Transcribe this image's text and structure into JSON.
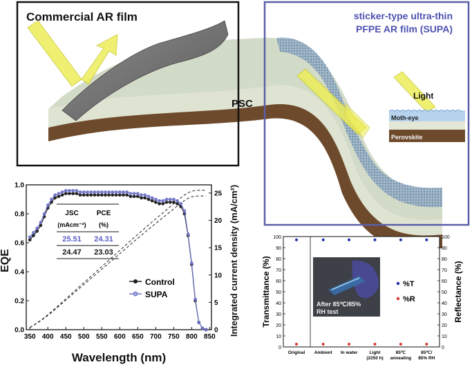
{
  "schematic": {
    "commercial_label": "Commercial AR film",
    "supa_label_line1": "sticker-type ultra-thin",
    "supa_label_line2": "PFPE AR film (SUPA)",
    "psc_label": "PSC",
    "inset": {
      "light": "Light",
      "moth_eye": "Moth-eye",
      "perovskite": "Perovskite"
    }
  },
  "chart_data": [
    {
      "type": "line",
      "xlabel": "Wavelength (nm)",
      "ylabel": "EQE",
      "ylabel_right": "Integrated current density (mA/cm²)",
      "xlim": [
        340,
        855
      ],
      "ylim": [
        0,
        1.0
      ],
      "ylim_right": [
        0,
        26.5
      ],
      "xticks": [
        350,
        400,
        450,
        500,
        550,
        600,
        650,
        700,
        750,
        800,
        850
      ],
      "yticks": [
        0.0,
        0.2,
        0.4,
        0.6,
        0.8,
        1.0
      ],
      "yticks_right": [
        0,
        5,
        10,
        15,
        20,
        25
      ],
      "legend": {
        "placement": "center-right",
        "entries": [
          "Control",
          "SUPA"
        ]
      },
      "x": [
        350,
        360,
        370,
        380,
        390,
        400,
        410,
        420,
        430,
        440,
        450,
        460,
        470,
        480,
        490,
        500,
        510,
        520,
        530,
        540,
        550,
        560,
        570,
        580,
        590,
        600,
        610,
        620,
        630,
        640,
        650,
        660,
        670,
        680,
        690,
        700,
        710,
        720,
        730,
        740,
        750,
        760,
        770,
        780,
        790,
        800,
        810,
        820,
        830,
        840
      ],
      "series": [
        {
          "name": "Control",
          "color": "#1a1a1a",
          "values": [
            0.62,
            0.65,
            0.68,
            0.72,
            0.78,
            0.84,
            0.88,
            0.91,
            0.92,
            0.93,
            0.94,
            0.94,
            0.94,
            0.94,
            0.93,
            0.93,
            0.93,
            0.93,
            0.93,
            0.93,
            0.93,
            0.93,
            0.93,
            0.93,
            0.93,
            0.93,
            0.93,
            0.93,
            0.92,
            0.92,
            0.92,
            0.91,
            0.91,
            0.9,
            0.89,
            0.88,
            0.87,
            0.87,
            0.88,
            0.88,
            0.88,
            0.87,
            0.85,
            0.8,
            0.65,
            0.45,
            0.2,
            0.05,
            0.01,
            0.0
          ]
        },
        {
          "name": "SUPA",
          "color": "#6f73c8",
          "values": [
            0.64,
            0.67,
            0.7,
            0.74,
            0.8,
            0.86,
            0.9,
            0.93,
            0.94,
            0.95,
            0.96,
            0.96,
            0.96,
            0.96,
            0.95,
            0.95,
            0.95,
            0.95,
            0.95,
            0.95,
            0.95,
            0.95,
            0.95,
            0.95,
            0.95,
            0.95,
            0.95,
            0.95,
            0.94,
            0.94,
            0.94,
            0.93,
            0.93,
            0.92,
            0.91,
            0.9,
            0.89,
            0.89,
            0.9,
            0.9,
            0.9,
            0.89,
            0.87,
            0.82,
            0.66,
            0.46,
            0.21,
            0.05,
            0.01,
            0.0
          ]
        }
      ],
      "table": {
        "headers": [
          "JSC",
          "PCE"
        ],
        "units": [
          "(mAcm⁻²)",
          "(%)"
        ],
        "rows": [
          [
            "25.51",
            "24.31"
          ],
          [
            "24.47",
            "23.03"
          ]
        ]
      }
    },
    {
      "type": "scatter",
      "ylabel": "Transmittance (%)",
      "ylabel_right": "Reflectance (%)",
      "ylim": [
        0,
        100
      ],
      "yticks": [
        0,
        10,
        20,
        30,
        40,
        50,
        60,
        70,
        80,
        90,
        100
      ],
      "categories": [
        "Original",
        "Ambient",
        "In water",
        "Light (2250 h)",
        "85℃ annealing",
        "85℃/ 85% RH"
      ],
      "category_lines": [
        [
          "Original"
        ],
        [
          "Ambient"
        ],
        [
          "In water"
        ],
        [
          "Light",
          "(2250 h)"
        ],
        [
          "85℃",
          "annealing"
        ],
        [
          "85℃/",
          "85% RH"
        ]
      ],
      "legend": {
        "placement": "center-right",
        "entries": [
          "%T",
          "%R"
        ]
      },
      "series": [
        {
          "name": "%T",
          "color": "#1e2fa8",
          "values": [
            97,
            97,
            97,
            97,
            97,
            97
          ]
        },
        {
          "name": "%R",
          "color": "#d43a2f",
          "values": [
            2.5,
            2.5,
            2.5,
            2.5,
            2.5,
            2.5
          ]
        }
      ],
      "inset_caption_line1": "After 85℃/85%",
      "inset_caption_line2": "RH test"
    }
  ]
}
